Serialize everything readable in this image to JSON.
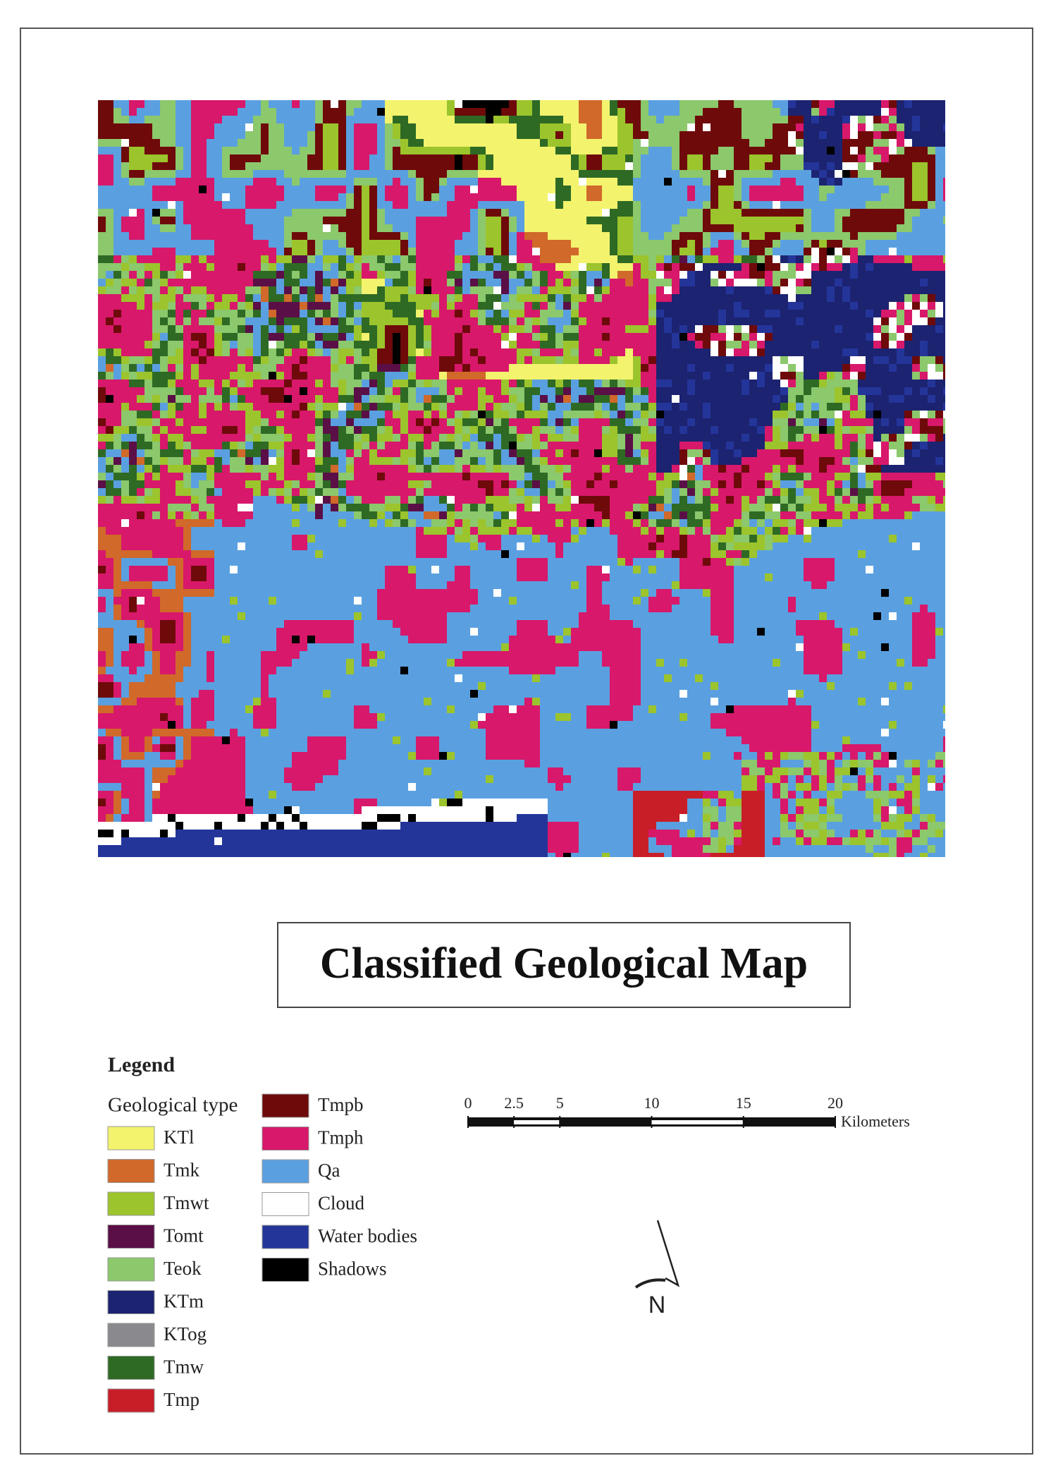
{
  "title": "Classified Geological Map",
  "legend": {
    "heading": "Legend",
    "subheading": "Geological type",
    "items": [
      {
        "label": "KTl",
        "color": "#f3f36e"
      },
      {
        "label": "Tmk",
        "color": "#d0692a"
      },
      {
        "label": "Tmwt",
        "color": "#9cc42c"
      },
      {
        "label": "Tomt",
        "color": "#5a0f46"
      },
      {
        "label": "Teok",
        "color": "#8cc86c"
      },
      {
        "label": "KTm",
        "color": "#1c2370"
      },
      {
        "label": "KTog",
        "color": "#8a8a8e"
      },
      {
        "label": "Tmw",
        "color": "#2e6a24"
      },
      {
        "label": "Tmp",
        "color": "#c81e28"
      },
      {
        "label": "Tmpb",
        "color": "#6e0a0a"
      },
      {
        "label": "Tmph",
        "color": "#d8186a"
      },
      {
        "label": "Qa",
        "color": "#5aa0e0"
      },
      {
        "label": "Cloud",
        "color": "#ffffff"
      },
      {
        "label": "Water bodies",
        "color": "#24359a"
      },
      {
        "label": "Shadows",
        "color": "#000000"
      }
    ]
  },
  "scale_bar": {
    "ticks": [
      0,
      2.5,
      5,
      10,
      15,
      20
    ],
    "unit": "Kilometers"
  },
  "north_arrow": {
    "label": "N"
  }
}
